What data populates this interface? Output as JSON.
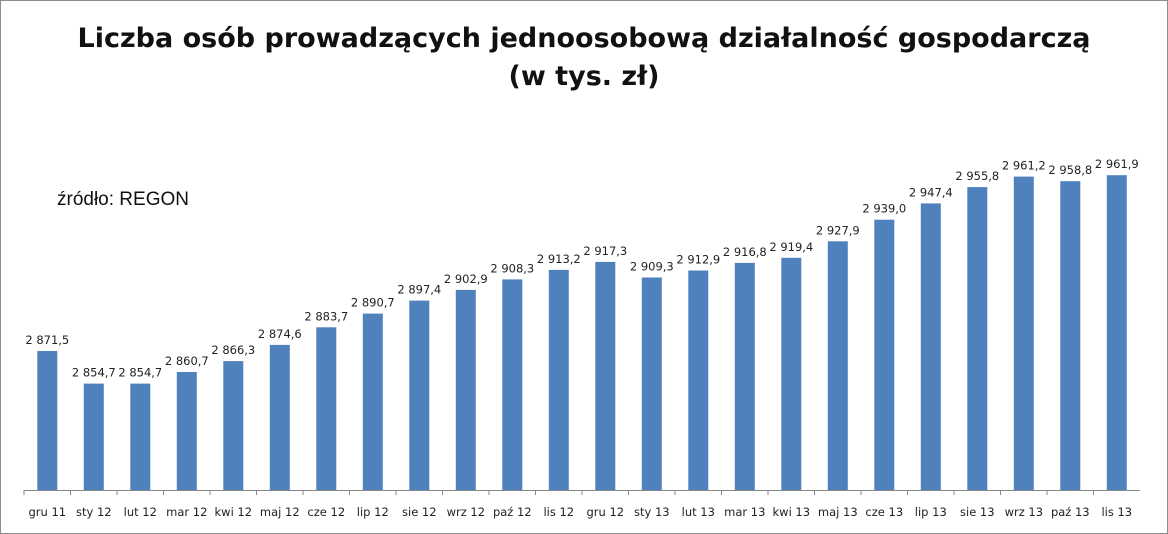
{
  "chart_data": {
    "type": "bar",
    "title": "Liczba osób prowadzących jednoosobową działalność gospodarczą",
    "subtitle": "(w tys. zł)",
    "annotation": "źródło: REGON",
    "xlabel": "",
    "ylabel": "",
    "categories": [
      "gru 11",
      "sty 12",
      "lut 12",
      "mar 12",
      "kwi 12",
      "maj 12",
      "cze 12",
      "lip 12",
      "sie 12",
      "wrz 12",
      "paź 12",
      "lis 12",
      "gru 12",
      "sty 13",
      "lut 13",
      "mar 13",
      "kwi 13",
      "maj 13",
      "cze 13",
      "lip 13",
      "sie 13",
      "wrz 13",
      "paź 13",
      "lis 13"
    ],
    "values": [
      2871.5,
      2854.7,
      2854.7,
      2860.7,
      2866.3,
      2874.6,
      2883.7,
      2890.7,
      2897.4,
      2902.9,
      2908.3,
      2913.2,
      2917.3,
      2909.3,
      2912.9,
      2916.8,
      2919.4,
      2927.9,
      2939.0,
      2947.4,
      2955.8,
      2961.2,
      2958.8,
      2961.9
    ],
    "value_labels": [
      "2 871,5",
      "2 854,7",
      "2 854,7",
      "2 860,7",
      "2 866,3",
      "2 874,6",
      "2 883,7",
      "2 890,7",
      "2 897,4",
      "2 902,9",
      "2 908,3",
      "2 913,2",
      "2 917,3",
      "2 909,3",
      "2 912,9",
      "2 916,8",
      "2 919,4",
      "2 927,9",
      "2 939,0",
      "2 947,4",
      "2 955,8",
      "2 961,2",
      "2 958,8",
      "2 961,9"
    ],
    "ylim": [
      2800,
      2980
    ],
    "grid": false,
    "legend": "none",
    "bar_color": "#4f81bd"
  }
}
